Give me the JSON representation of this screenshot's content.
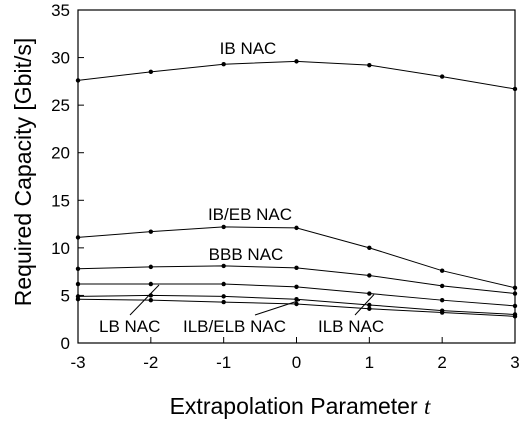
{
  "chart_data": {
    "type": "line",
    "xlabel": "Extrapolation Parameter",
    "xlabel_var": "t",
    "ylabel": "Required Capacity  [Gbit/s]",
    "x": [
      -3,
      -2,
      -1,
      0,
      1,
      2,
      3
    ],
    "xlim": [
      -3,
      3
    ],
    "ylim": [
      0,
      35
    ],
    "xticks": [
      "-3",
      "-2",
      "-1",
      "0",
      "1",
      "2",
      "3"
    ],
    "yticks": [
      "0",
      "5",
      "10",
      "15",
      "20",
      "25",
      "30",
      "35"
    ],
    "grid": false,
    "legend": "none",
    "series": [
      {
        "name": "IB NAC",
        "values": [
          27.6,
          28.5,
          29.3,
          29.6,
          29.2,
          28.0,
          26.7
        ]
      },
      {
        "name": "IB/EB NAC",
        "values": [
          11.1,
          11.7,
          12.2,
          12.1,
          10.0,
          7.6,
          5.8
        ]
      },
      {
        "name": "BBB NAC",
        "values": [
          7.8,
          8.0,
          8.1,
          7.9,
          7.1,
          6.0,
          5.2
        ]
      },
      {
        "name": "LB NAC",
        "values": [
          6.2,
          6.2,
          6.2,
          5.9,
          5.2,
          4.5,
          3.9
        ]
      },
      {
        "name": "ILB/ELB NAC",
        "values": [
          4.9,
          5.0,
          4.9,
          4.6,
          4.0,
          3.4,
          3.0
        ]
      },
      {
        "name": "ILB NAC",
        "values": [
          4.6,
          4.5,
          4.3,
          4.1,
          3.6,
          3.2,
          2.8
        ]
      }
    ]
  }
}
